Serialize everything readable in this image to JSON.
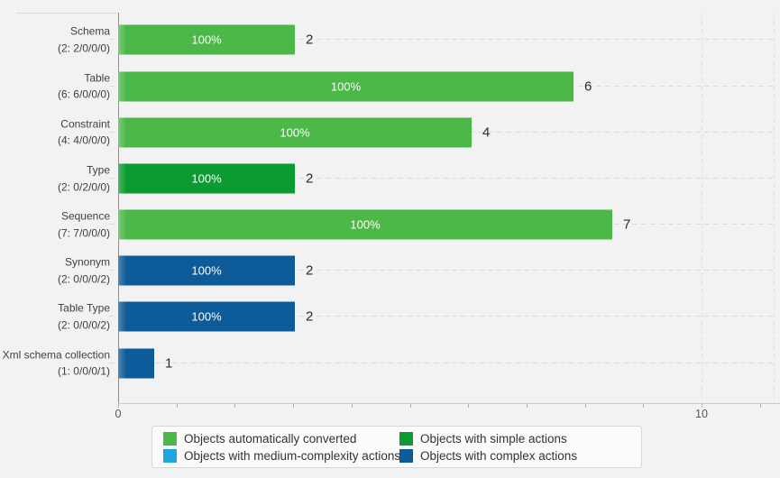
{
  "chart_data": {
    "type": "bar",
    "orientation": "horizontal",
    "title": "",
    "xlabel": "",
    "ylabel": "",
    "axis": {
      "tick_labels": [
        "0",
        "10"
      ],
      "minor_tick_count": 12,
      "scale_note": "bar length proportional to 10*log10(count)"
    },
    "palette": {
      "auto": "#4CB848",
      "simple": "#0B9B31",
      "medium": "#1CA7E0",
      "complex": "#0D5B98"
    },
    "rows": [
      {
        "name": "Schema",
        "sub": "(2: 2/0/0/0)",
        "count": 2,
        "pct": "100%",
        "value": "2",
        "status": "auto",
        "bar_units": 3.03
      },
      {
        "name": "Table",
        "sub": "(6: 6/0/0/0)",
        "count": 6,
        "pct": "100%",
        "value": "6",
        "status": "auto",
        "bar_units": 7.8
      },
      {
        "name": "Constraint",
        "sub": "(4: 4/0/0/0)",
        "count": 4,
        "pct": "100%",
        "value": "4",
        "status": "auto",
        "bar_units": 6.06
      },
      {
        "name": "Type",
        "sub": "(2: 0/2/0/0)",
        "count": 2,
        "pct": "100%",
        "value": "2",
        "status": "simple",
        "bar_units": 3.03
      },
      {
        "name": "Sequence",
        "sub": "(7: 7/0/0/0)",
        "count": 7,
        "pct": "100%",
        "value": "7",
        "status": "auto",
        "bar_units": 8.47
      },
      {
        "name": "Synonym",
        "sub": "(2: 0/0/0/2)",
        "count": 2,
        "pct": "100%",
        "value": "2",
        "status": "complex",
        "bar_units": 3.03
      },
      {
        "name": "Table Type",
        "sub": "(2: 0/0/0/2)",
        "count": 2,
        "pct": "100%",
        "value": "2",
        "status": "complex",
        "bar_units": 3.03
      },
      {
        "name": "Xml schema collection",
        "sub": "(1: 0/0/0/1)",
        "count": 1,
        "pct": "",
        "value": "1",
        "status": "complex",
        "bar_units": 0.62
      }
    ],
    "legend": [
      {
        "label": "Objects automatically converted",
        "status": "auto"
      },
      {
        "label": "Objects with simple actions",
        "status": "simple"
      },
      {
        "label": "Objects with medium-complexity actions",
        "status": "medium"
      },
      {
        "label": "Objects with complex actions",
        "status": "complex"
      }
    ]
  }
}
